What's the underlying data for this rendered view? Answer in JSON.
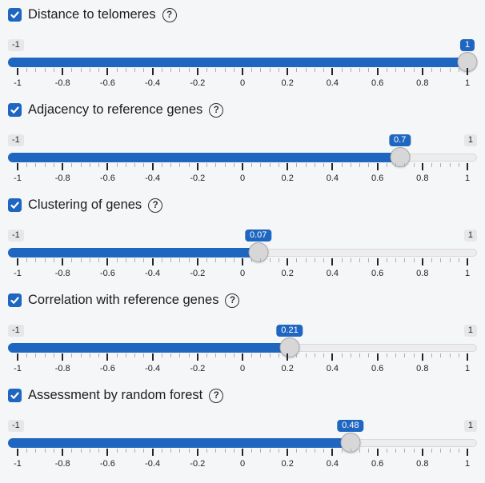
{
  "accent_color": "#1f66c1",
  "background_color": "#f5f6f7",
  "help_glyph": "?",
  "range": [
    -1,
    1
  ],
  "tick_labels": [
    "-1",
    "-0.8",
    "-0.6",
    "-0.4",
    "-0.2",
    "0",
    "0.2",
    "0.4",
    "0.6",
    "0.8",
    "1"
  ],
  "sliders": [
    {
      "label": "Distance to telomeres",
      "checked": true,
      "value": 1,
      "value_label": "1",
      "min_label": "-1",
      "max_label": "1",
      "max_hidden": true
    },
    {
      "label": "Adjacency to reference genes",
      "checked": true,
      "value": 0.7,
      "value_label": "0.7",
      "min_label": "-1",
      "max_label": "1",
      "max_hidden": false
    },
    {
      "label": "Clustering of genes",
      "checked": true,
      "value": 0.07,
      "value_label": "0.07",
      "min_label": "-1",
      "max_label": "1",
      "max_hidden": false
    },
    {
      "label": "Correlation with reference genes",
      "checked": true,
      "value": 0.21,
      "value_label": "0.21",
      "min_label": "-1",
      "max_label": "1",
      "max_hidden": false
    },
    {
      "label": "Assessment by random forest",
      "checked": true,
      "value": 0.48,
      "value_label": "0.48",
      "min_label": "-1",
      "max_label": "1",
      "max_hidden": false
    }
  ]
}
